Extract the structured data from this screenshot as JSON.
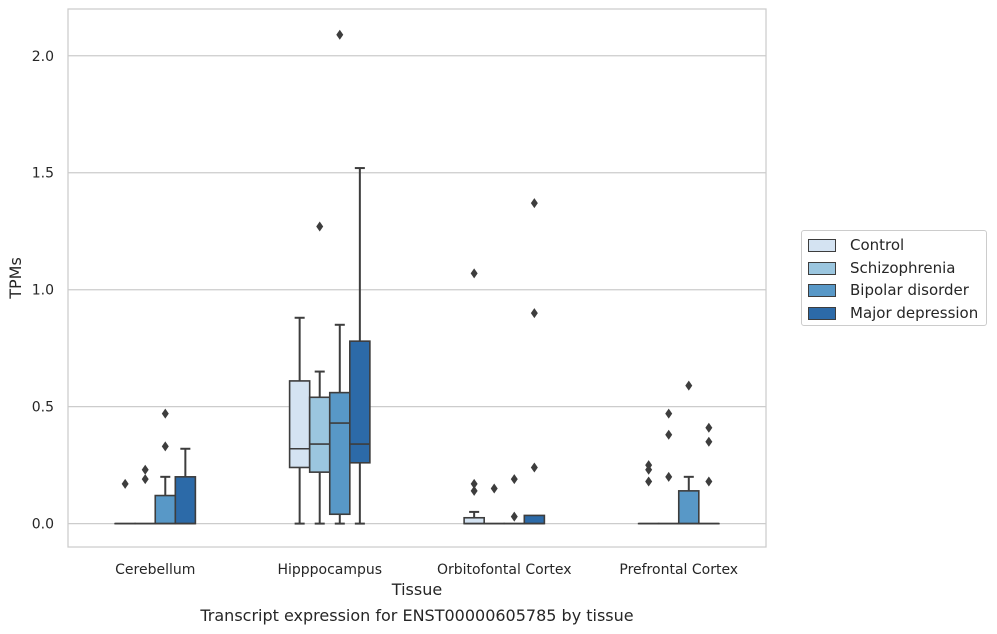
{
  "chart_data": {
    "type": "box",
    "title": "",
    "caption": "Transcript expression for ENST00000605785 by tissue",
    "xlabel": "Tissue",
    "ylabel": "TPMs",
    "ylim": [
      -0.1,
      2.2
    ],
    "yticks": [
      0.0,
      0.5,
      1.0,
      1.5,
      2.0
    ],
    "ytick_labels": [
      "0.0",
      "0.5",
      "1.0",
      "1.5",
      "2.0"
    ],
    "grid": "horizontal",
    "legend_position": "right",
    "categories": [
      "Cerebellum",
      "Hipppocampus",
      "Orbitofontal Cortex",
      "Prefrontal Cortex"
    ],
    "series": [
      {
        "name": "Control",
        "color": "#d4e3f2",
        "boxes": [
          {
            "q1": 0.0,
            "median": 0.0,
            "q3": 0.0,
            "whisker_low": 0.0,
            "whisker_high": 0.0,
            "outliers": [
              0.17
            ]
          },
          {
            "q1": 0.24,
            "median": 0.32,
            "q3": 0.61,
            "whisker_low": 0.0,
            "whisker_high": 0.88,
            "outliers": []
          },
          {
            "q1": 0.0,
            "median": 0.0,
            "q3": 0.025,
            "whisker_low": 0.0,
            "whisker_high": 0.05,
            "outliers": [
              0.14,
              0.17,
              1.07
            ]
          },
          {
            "q1": 0.0,
            "median": 0.0,
            "q3": 0.0,
            "whisker_low": 0.0,
            "whisker_high": 0.0,
            "outliers": [
              0.18,
              0.23,
              0.25
            ]
          }
        ]
      },
      {
        "name": "Schizophrenia",
        "color": "#9bc6df",
        "boxes": [
          {
            "q1": 0.0,
            "median": 0.0,
            "q3": 0.0,
            "whisker_low": 0.0,
            "whisker_high": 0.0,
            "outliers": [
              0.19,
              0.23
            ]
          },
          {
            "q1": 0.22,
            "median": 0.34,
            "q3": 0.54,
            "whisker_low": 0.0,
            "whisker_high": 0.65,
            "outliers": [
              1.27
            ]
          },
          {
            "q1": 0.0,
            "median": 0.0,
            "q3": 0.0,
            "whisker_low": 0.0,
            "whisker_high": 0.0,
            "outliers": [
              0.15
            ]
          },
          {
            "q1": 0.0,
            "median": 0.0,
            "q3": 0.0,
            "whisker_low": 0.0,
            "whisker_high": 0.0,
            "outliers": [
              0.2,
              0.38,
              0.47
            ]
          }
        ]
      },
      {
        "name": "Bipolar disorder",
        "color": "#5898c7",
        "boxes": [
          {
            "q1": 0.0,
            "median": 0.0,
            "q3": 0.12,
            "whisker_low": 0.0,
            "whisker_high": 0.2,
            "outliers": [
              0.33,
              0.47
            ]
          },
          {
            "q1": 0.04,
            "median": 0.43,
            "q3": 0.56,
            "whisker_low": 0.0,
            "whisker_high": 0.85,
            "outliers": [
              2.09
            ]
          },
          {
            "q1": 0.0,
            "median": 0.0,
            "q3": 0.0,
            "whisker_low": 0.0,
            "whisker_high": 0.0,
            "outliers": [
              0.03,
              0.19
            ]
          },
          {
            "q1": 0.0,
            "median": 0.0,
            "q3": 0.14,
            "whisker_low": 0.0,
            "whisker_high": 0.2,
            "outliers": [
              0.59
            ]
          }
        ]
      },
      {
        "name": "Major depression",
        "color": "#2c6aa8",
        "boxes": [
          {
            "q1": 0.0,
            "median": 0.0,
            "q3": 0.2,
            "whisker_low": 0.0,
            "whisker_high": 0.32,
            "outliers": []
          },
          {
            "q1": 0.26,
            "median": 0.34,
            "q3": 0.78,
            "whisker_low": 0.0,
            "whisker_high": 1.52,
            "outliers": []
          },
          {
            "q1": 0.0,
            "median": 0.0,
            "q3": 0.035,
            "whisker_low": 0.0,
            "whisker_high": 0.035,
            "outliers": [
              0.24,
              0.9,
              1.37
            ]
          },
          {
            "q1": 0.0,
            "median": 0.0,
            "q3": 0.0,
            "whisker_low": 0.0,
            "whisker_high": 0.0,
            "outliers": [
              0.18,
              0.35,
              0.41
            ]
          }
        ]
      }
    ]
  }
}
